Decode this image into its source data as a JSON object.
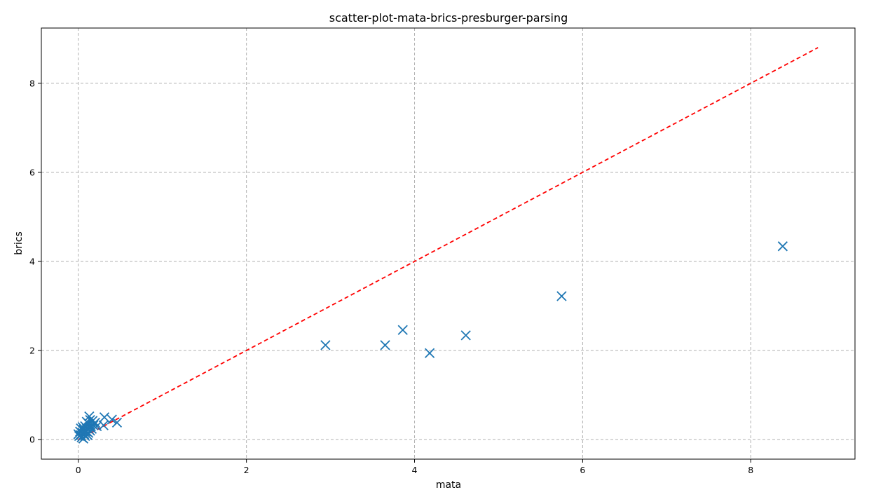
{
  "chart_data": {
    "type": "scatter",
    "title": "scatter-plot-mata-brics-presburger-parsing",
    "xlabel": "mata",
    "ylabel": "brics",
    "xlim": [
      -0.44,
      9.24
    ],
    "ylim": [
      -0.44,
      9.24
    ],
    "xticks": [
      0,
      2,
      4,
      6,
      8
    ],
    "yticks": [
      0,
      2,
      4,
      6,
      8
    ],
    "grid": true,
    "marker": "x",
    "point_color": "#1f77b4",
    "reference_line": {
      "x": [
        0,
        8.8
      ],
      "y": [
        0,
        8.8
      ],
      "style": "dashed",
      "color": "#ff0000"
    },
    "series": [
      {
        "points": [
          [
            2.94,
            2.12
          ],
          [
            3.65,
            2.12
          ],
          [
            3.86,
            2.46
          ],
          [
            4.18,
            1.94
          ],
          [
            4.61,
            2.34
          ],
          [
            5.75,
            3.22
          ],
          [
            8.38,
            4.34
          ],
          [
            0.13,
            0.52
          ],
          [
            0.31,
            0.5
          ],
          [
            0.4,
            0.45
          ],
          [
            0.46,
            0.38
          ],
          [
            0.3,
            0.32
          ],
          [
            0.22,
            0.3
          ],
          [
            0.17,
            0.42
          ],
          [
            0.12,
            0.36
          ],
          [
            0.15,
            0.3
          ],
          [
            0.2,
            0.38
          ],
          [
            0.08,
            0.3
          ],
          [
            0.1,
            0.25
          ],
          [
            0.06,
            0.22
          ],
          [
            0.14,
            0.2
          ],
          [
            0.09,
            0.18
          ],
          [
            0.05,
            0.15
          ],
          [
            0.07,
            0.12
          ],
          [
            0.03,
            0.1
          ],
          [
            0.04,
            0.05
          ],
          [
            0.06,
            0.02
          ],
          [
            0.01,
            0.08
          ],
          [
            0.02,
            0.18
          ],
          [
            0.11,
            0.1
          ],
          [
            0.16,
            0.24
          ],
          [
            0.18,
            0.32
          ],
          [
            0.12,
            0.15
          ],
          [
            0.08,
            0.08
          ],
          [
            0.1,
            0.4
          ],
          [
            0.05,
            0.28
          ],
          [
            0.14,
            0.44
          ],
          [
            0.07,
            0.2
          ],
          [
            0.0,
            0.12
          ],
          [
            0.03,
            0.25
          ],
          [
            0.13,
            0.28
          ]
        ]
      }
    ]
  }
}
